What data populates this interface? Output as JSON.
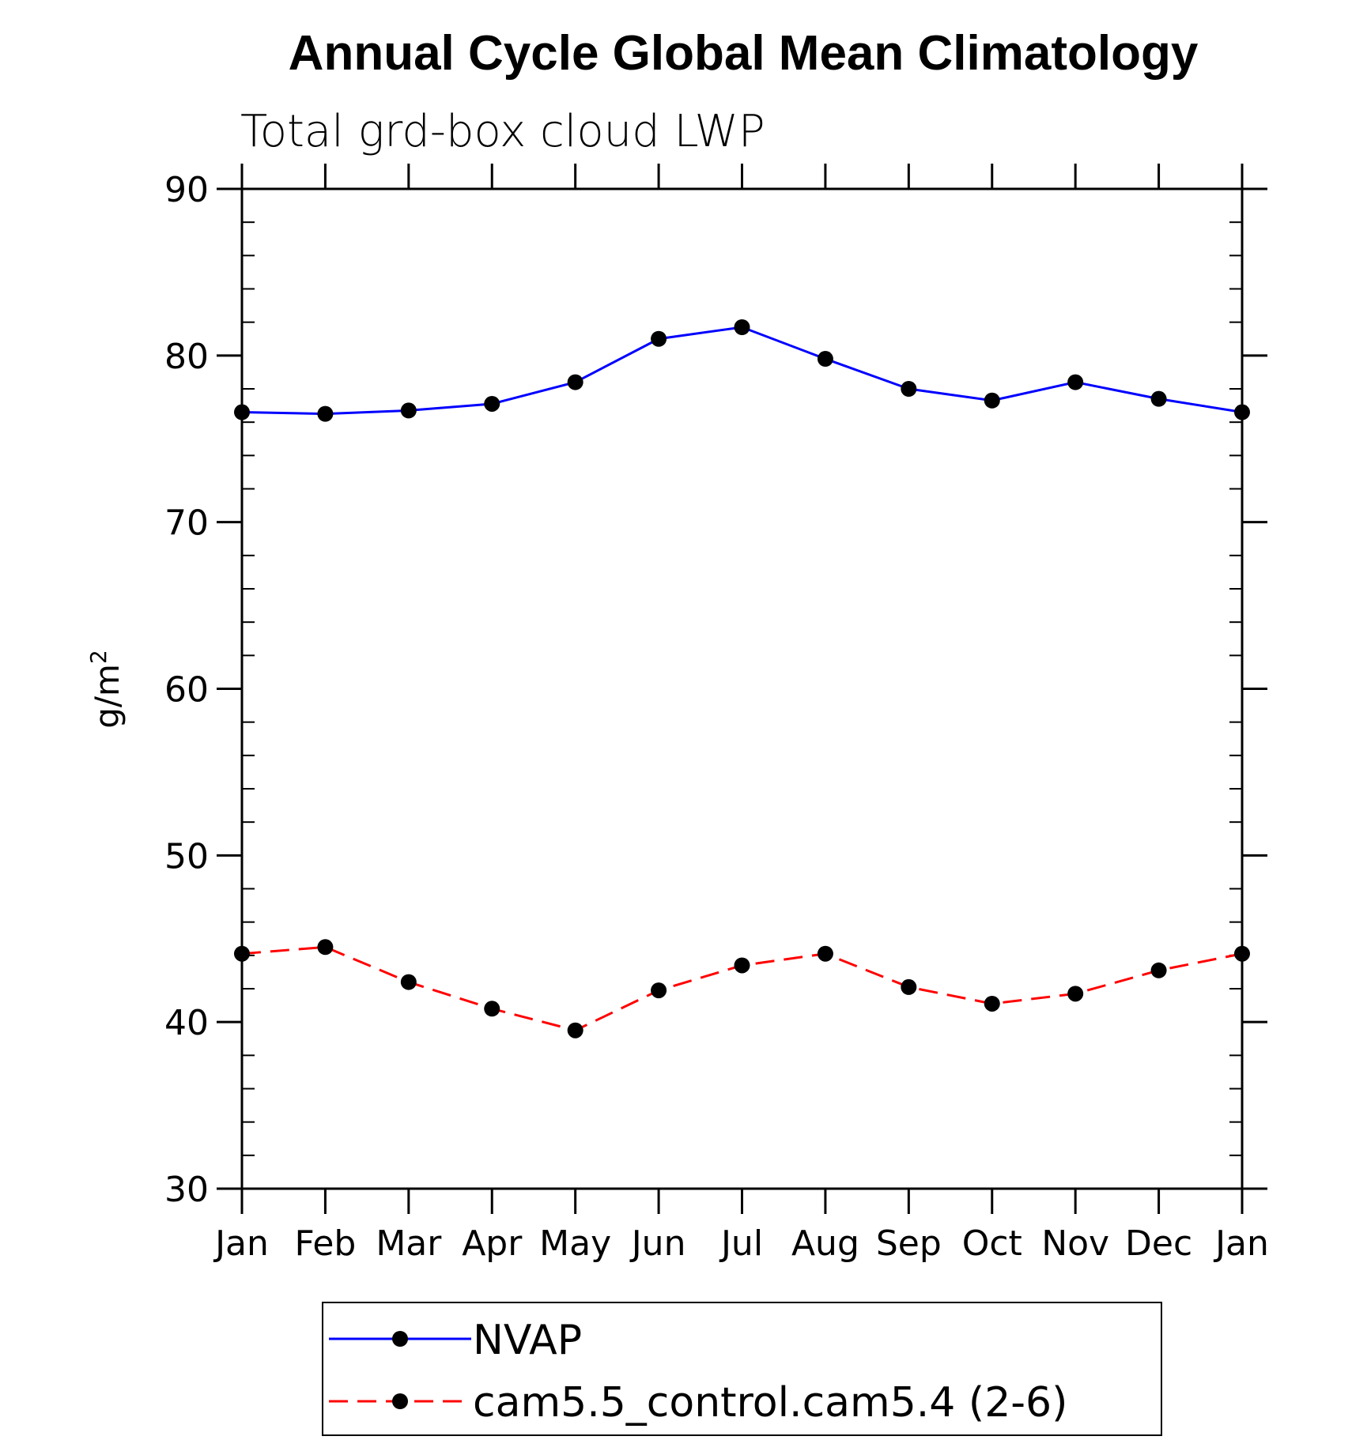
{
  "chart_data": {
    "type": "line",
    "title": "Annual Cycle Global Mean Climatology",
    "subtitle": "Total grd-box cloud LWP",
    "xlabel": "",
    "ylabel": "g/m",
    "ylabel_superscript": "2",
    "categories": [
      "Jan",
      "Feb",
      "Mar",
      "Apr",
      "May",
      "Jun",
      "Jul",
      "Aug",
      "Sep",
      "Oct",
      "Nov",
      "Dec",
      "Jan"
    ],
    "ylim": [
      30,
      90
    ],
    "yticks": [
      "30",
      "40",
      "50",
      "60",
      "70",
      "80",
      "90"
    ],
    "grid": false,
    "legend_position": "bottom",
    "series": [
      {
        "name": "NVAP",
        "color": "#0000ff",
        "dash": "solid",
        "marker": "filled-circle",
        "values": [
          76.6,
          76.5,
          76.7,
          77.1,
          78.4,
          81.0,
          81.7,
          79.8,
          78.0,
          77.3,
          78.4,
          77.4,
          76.6
        ]
      },
      {
        "name": "cam5.5_control.cam5.4 (2-6)",
        "color": "#ff0000",
        "dash": "dashed",
        "marker": "filled-circle",
        "values": [
          44.1,
          44.5,
          42.4,
          40.8,
          39.5,
          41.9,
          43.4,
          44.1,
          42.1,
          41.1,
          41.7,
          43.1,
          44.1
        ]
      }
    ]
  }
}
